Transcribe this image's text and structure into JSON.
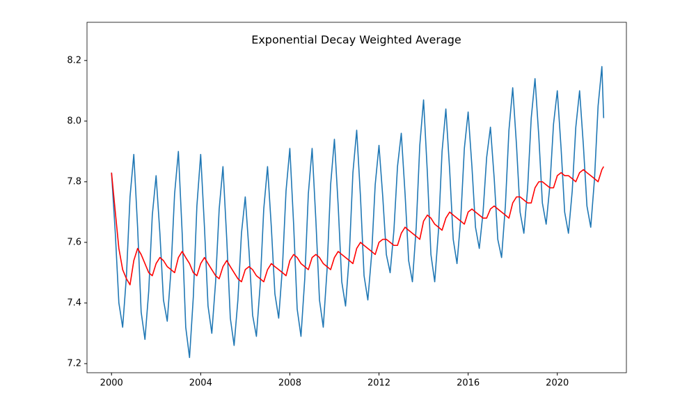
{
  "chart_data": {
    "type": "line",
    "title": "Exponential Decay Weighted Average",
    "x": [
      2000,
      2000.17,
      2000.33,
      2000.5,
      2000.67,
      2000.83,
      2001,
      2001.17,
      2001.33,
      2001.5,
      2001.67,
      2001.83,
      2002,
      2002.17,
      2002.33,
      2002.5,
      2002.67,
      2002.83,
      2003,
      2003.17,
      2003.33,
      2003.5,
      2003.67,
      2003.83,
      2004,
      2004.17,
      2004.33,
      2004.5,
      2004.67,
      2004.83,
      2005,
      2005.17,
      2005.33,
      2005.5,
      2005.67,
      2005.83,
      2006,
      2006.17,
      2006.33,
      2006.5,
      2006.67,
      2006.83,
      2007,
      2007.17,
      2007.33,
      2007.5,
      2007.67,
      2007.83,
      2008,
      2008.17,
      2008.33,
      2008.5,
      2008.67,
      2008.83,
      2009,
      2009.17,
      2009.33,
      2009.5,
      2009.67,
      2009.83,
      2010,
      2010.17,
      2010.33,
      2010.5,
      2010.67,
      2010.83,
      2011,
      2011.17,
      2011.33,
      2011.5,
      2011.67,
      2011.83,
      2012,
      2012.17,
      2012.33,
      2012.5,
      2012.67,
      2012.83,
      2013,
      2013.17,
      2013.33,
      2013.5,
      2013.67,
      2013.83,
      2014,
      2014.17,
      2014.33,
      2014.5,
      2014.67,
      2014.83,
      2015,
      2015.17,
      2015.33,
      2015.5,
      2015.67,
      2015.83,
      2016,
      2016.17,
      2016.33,
      2016.5,
      2016.67,
      2016.83,
      2017,
      2017.17,
      2017.33,
      2017.5,
      2017.67,
      2017.83,
      2018,
      2018.17,
      2018.33,
      2018.5,
      2018.67,
      2018.83,
      2019,
      2019.17,
      2019.33,
      2019.5,
      2019.67,
      2019.83,
      2020,
      2020.17,
      2020.33,
      2020.5,
      2020.67,
      2020.83,
      2021,
      2021.17,
      2021.33,
      2021.5,
      2021.67,
      2021.83,
      2022,
      2022.08
    ],
    "series": [
      {
        "color": "#1f77b4",
        "values": [
          7.83,
          7.63,
          7.4,
          7.32,
          7.49,
          7.75,
          7.89,
          7.65,
          7.37,
          7.28,
          7.44,
          7.69,
          7.82,
          7.63,
          7.41,
          7.34,
          7.51,
          7.76,
          7.9,
          7.63,
          7.32,
          7.22,
          7.42,
          7.72,
          7.89,
          7.65,
          7.39,
          7.3,
          7.47,
          7.71,
          7.85,
          7.61,
          7.35,
          7.26,
          7.41,
          7.63,
          7.75,
          7.57,
          7.36,
          7.29,
          7.46,
          7.71,
          7.85,
          7.65,
          7.43,
          7.35,
          7.52,
          7.77,
          7.91,
          7.66,
          7.38,
          7.29,
          7.48,
          7.76,
          7.91,
          7.67,
          7.41,
          7.32,
          7.51,
          7.79,
          7.94,
          7.72,
          7.47,
          7.39,
          7.56,
          7.83,
          7.97,
          7.75,
          7.49,
          7.41,
          7.56,
          7.79,
          7.92,
          7.75,
          7.56,
          7.5,
          7.64,
          7.85,
          7.96,
          7.76,
          7.54,
          7.47,
          7.65,
          7.92,
          8.07,
          7.83,
          7.56,
          7.47,
          7.64,
          7.9,
          8.04,
          7.84,
          7.61,
          7.53,
          7.68,
          7.91,
          8.03,
          7.85,
          7.65,
          7.58,
          7.7,
          7.88,
          7.98,
          7.81,
          7.61,
          7.55,
          7.72,
          7.97,
          8.11,
          7.92,
          7.7,
          7.63,
          7.78,
          8.01,
          8.14,
          7.95,
          7.73,
          7.66,
          7.79,
          7.99,
          8.1,
          7.91,
          7.7,
          7.63,
          7.77,
          7.98,
          8.1,
          7.92,
          7.72,
          7.65,
          7.81,
          8.05,
          8.18,
          8.01
        ]
      },
      {
        "color": "#ff0000",
        "values": [
          7.83,
          7.7,
          7.58,
          7.51,
          7.48,
          7.46,
          7.54,
          7.58,
          7.56,
          7.53,
          7.5,
          7.49,
          7.53,
          7.55,
          7.54,
          7.52,
          7.51,
          7.5,
          7.55,
          7.57,
          7.55,
          7.53,
          7.5,
          7.49,
          7.53,
          7.55,
          7.53,
          7.51,
          7.49,
          7.48,
          7.52,
          7.54,
          7.52,
          7.5,
          7.48,
          7.47,
          7.51,
          7.52,
          7.51,
          7.49,
          7.48,
          7.47,
          7.51,
          7.53,
          7.52,
          7.51,
          7.5,
          7.49,
          7.54,
          7.56,
          7.55,
          7.53,
          7.52,
          7.51,
          7.55,
          7.56,
          7.55,
          7.53,
          7.52,
          7.51,
          7.55,
          7.57,
          7.56,
          7.55,
          7.54,
          7.53,
          7.58,
          7.6,
          7.59,
          7.58,
          7.57,
          7.56,
          7.6,
          7.61,
          7.61,
          7.6,
          7.59,
          7.59,
          7.63,
          7.65,
          7.64,
          7.63,
          7.62,
          7.61,
          7.67,
          7.69,
          7.68,
          7.66,
          7.65,
          7.64,
          7.68,
          7.7,
          7.69,
          7.68,
          7.67,
          7.66,
          7.7,
          7.71,
          7.7,
          7.69,
          7.68,
          7.68,
          7.71,
          7.72,
          7.71,
          7.7,
          7.69,
          7.68,
          7.73,
          7.75,
          7.75,
          7.74,
          7.73,
          7.73,
          7.78,
          7.8,
          7.8,
          7.79,
          7.78,
          7.78,
          7.82,
          7.83,
          7.82,
          7.82,
          7.81,
          7.8,
          7.83,
          7.84,
          7.83,
          7.82,
          7.81,
          7.8,
          7.84,
          7.85
        ]
      }
    ],
    "xlim": [
      1998.9,
      2023.1
    ],
    "xticks": [
      2000,
      2004,
      2008,
      2012,
      2016,
      2020
    ],
    "ylim": [
      7.17,
      8.326
    ],
    "yticks": [
      7.2,
      7.4,
      7.6,
      7.8,
      {
        "value": 8,
        "label": "8.0"
      },
      8.2
    ],
    "grid": false
  }
}
